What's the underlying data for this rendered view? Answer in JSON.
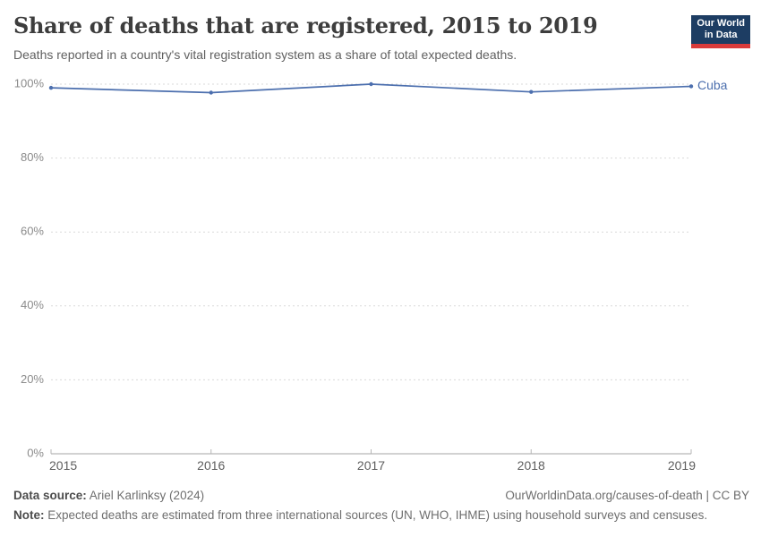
{
  "header": {
    "title": "Share of deaths that are registered, 2015 to 2019",
    "subtitle": "Deaths reported in a country's vital registration system as a share of total expected deaths."
  },
  "logo": {
    "line1": "Our World",
    "line2": "in Data",
    "bg_color": "#1d3d63",
    "stripe_color": "#d93b3b"
  },
  "chart_data": {
    "type": "line",
    "title": "Share of deaths that are registered, 2015 to 2019",
    "x": [
      2015,
      2016,
      2017,
      2018,
      2019
    ],
    "series": [
      {
        "name": "Cuba",
        "values": [
          99,
          97.7,
          100,
          97.9,
          99.4
        ],
        "color": "#4c6fae"
      }
    ],
    "xlabel": "",
    "ylabel": "",
    "ylim": [
      0,
      100
    ],
    "yticks": [
      {
        "value": 0,
        "label": "0%"
      },
      {
        "value": 20,
        "label": "20%"
      },
      {
        "value": 40,
        "label": "40%"
      },
      {
        "value": 60,
        "label": "60%"
      },
      {
        "value": 80,
        "label": "80%"
      },
      {
        "value": 100,
        "label": "100%"
      }
    ],
    "grid": "horizontal-dashed",
    "legend_position": "line-end-label"
  },
  "colors": {
    "line": "#4c6fae",
    "gridline": "#d9d9d9",
    "axis": "#a5a5a5",
    "tick": "#b5b5b5"
  },
  "footer": {
    "data_source_label": "Data source:",
    "data_source_value": " Ariel Karlinksy (2024)",
    "link": "OurWorldinData.org/causes-of-death | CC BY",
    "note_label": "Note:",
    "note_value": " Expected deaths are estimated from three international sources (UN, WHO, IHME) using household surveys and censuses."
  }
}
